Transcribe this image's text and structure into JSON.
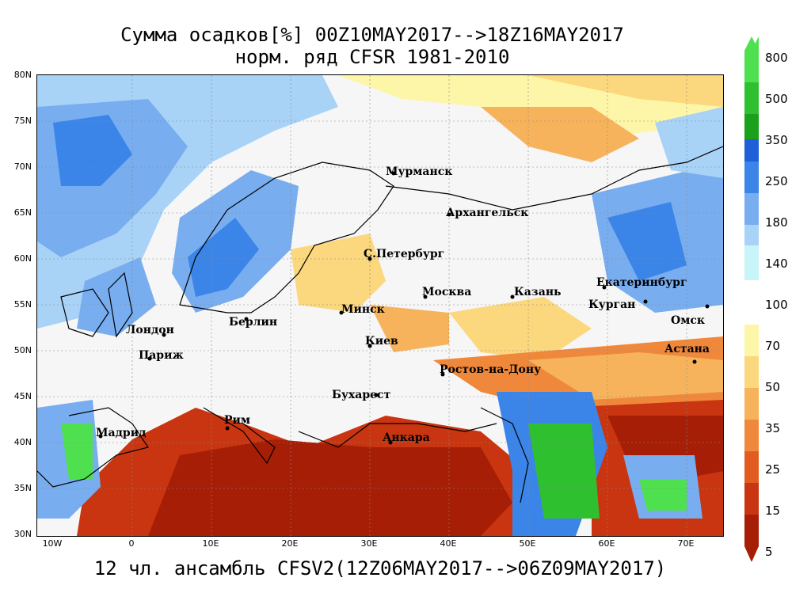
{
  "title": {
    "line1": "Сумма осадков[%] 00Z10MAY2017-->18Z16MAY2017",
    "line2": "норм. ряд CFSR 1981-2010"
  },
  "subtitle": "12 чл. ансамбль CFSV2(12Z06MAY2017-->06Z09MAY2017)",
  "lat_labels": [
    "80N",
    "75N",
    "70N",
    "65N",
    "60N",
    "55N",
    "50N",
    "45N",
    "40N",
    "35N",
    "30N"
  ],
  "lon_labels": [
    "10W",
    "0",
    "10E",
    "20E",
    "30E",
    "40E",
    "50E",
    "60E",
    "70E"
  ],
  "cities": [
    "Мурманск",
    "Архангельск",
    "С.Петербург",
    "Москва",
    "Казань",
    "Екатеринбург",
    "Курган",
    "Омск",
    "Астана",
    "Минск",
    "Киев",
    "Берлин",
    "Лондон",
    "Париж",
    "Ростов-на-Дону",
    "Бухарест",
    "Рим",
    "Мадрид",
    "Анкара"
  ],
  "legend": {
    "labels": [
      "800",
      "500",
      "350",
      "250",
      "180",
      "140",
      "100",
      "70",
      "50",
      "35",
      "25",
      "15",
      "5"
    ],
    "colors": [
      "#4fe04f",
      "#2ec02e",
      "#1aa01a",
      "#1f5fd8",
      "#3b85e8",
      "#78adf0",
      "#a9d2f7",
      "#c8f5f9",
      "#fdf6a8",
      "#fbd77e",
      "#f7b35c",
      "#f0883c",
      "#e25c22",
      "#c83510",
      "#a61e05"
    ]
  }
}
